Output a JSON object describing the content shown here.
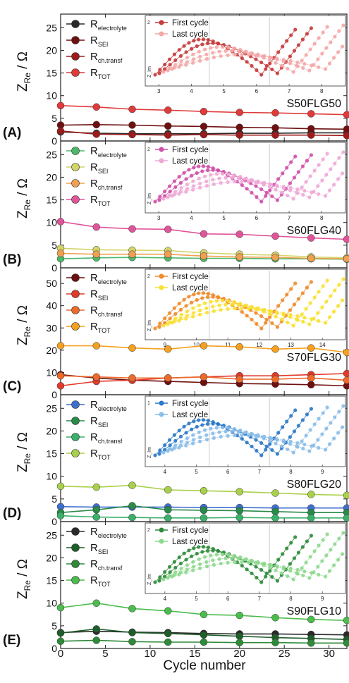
{
  "x_axis": {
    "label": "Cycle number",
    "range": [
      0,
      32
    ],
    "ticks": [
      0,
      5,
      10,
      15,
      20,
      25,
      30
    ]
  },
  "y_axis_label_main": "Z",
  "y_axis_label_sub": "Re",
  "y_axis_label_unit": "/ Ω",
  "inset_legend": [
    "First cycle",
    "Last cycle"
  ],
  "inset_ylabel": "Z_Im",
  "chart_data": [
    {
      "panel": "(A)",
      "sample": "S50FLG50",
      "type": "line",
      "ylim": [
        0,
        28
      ],
      "yticks": [
        0,
        5,
        10,
        15,
        20,
        25
      ],
      "x": [
        0,
        4,
        8,
        12,
        16,
        20,
        24,
        28,
        32
      ],
      "series": [
        {
          "name": "R_electrolyte",
          "color": "#2a2a2a",
          "values": [
            2.0,
            1.7,
            1.6,
            1.6,
            1.6,
            1.7,
            1.7,
            1.8,
            1.8
          ]
        },
        {
          "name": "R_SEI",
          "color": "#6e1010",
          "values": [
            3.5,
            3.6,
            3.5,
            3.3,
            3.2,
            3.0,
            2.9,
            2.7,
            2.6
          ]
        },
        {
          "name": "R_ch.transf",
          "color": "#9e1b1b",
          "values": [
            2.2,
            1.5,
            1.4,
            1.3,
            1.4,
            1.3,
            1.3,
            1.3,
            1.2
          ]
        },
        {
          "name": "R_TOT",
          "color": "#e03a3a",
          "values": [
            7.8,
            7.5,
            7.0,
            6.8,
            6.5,
            6.3,
            6.2,
            6.0,
            5.8
          ]
        }
      ],
      "inset": {
        "xticks": [
          3,
          4,
          5,
          6,
          7,
          8
        ],
        "xrange": [
          2.8,
          8.6
        ],
        "first_color": "#c63a3a",
        "last_color": "#f4a7a7",
        "ytop": "2"
      }
    },
    {
      "panel": "(B)",
      "sample": "S60FLG40",
      "type": "line",
      "ylim": [
        0,
        28
      ],
      "yticks": [
        0,
        5,
        10,
        15,
        20,
        25
      ],
      "x": [
        0,
        4,
        8,
        12,
        16,
        20,
        24,
        28,
        32
      ],
      "series": [
        {
          "name": "R_electrolyte",
          "color": "#4cb96a",
          "values": [
            2.0,
            2.2,
            2.3,
            2.2,
            2.1,
            2.1,
            2.0,
            2.0,
            1.9
          ]
        },
        {
          "name": "R_SEI",
          "color": "#d4d46a",
          "values": [
            4.3,
            4.0,
            3.9,
            3.8,
            3.3,
            3.0,
            2.8,
            2.4,
            2.2
          ]
        },
        {
          "name": "R_ch.transf",
          "color": "#f0a050",
          "values": [
            3.2,
            3.0,
            3.0,
            3.0,
            2.6,
            2.4,
            2.3,
            2.1,
            2.0
          ]
        },
        {
          "name": "R_TOT",
          "color": "#e0559a",
          "values": [
            10.2,
            9.0,
            8.6,
            8.5,
            7.5,
            7.4,
            7.0,
            6.6,
            6.3
          ]
        }
      ],
      "inset": {
        "xticks": [
          3,
          4,
          5,
          6,
          7,
          8
        ],
        "xrange": [
          2.8,
          8.6
        ],
        "first_color": "#d04fa8",
        "last_color": "#eea8d6",
        "ytop": "2"
      }
    },
    {
      "panel": "(C)",
      "sample": "S70FLG30",
      "type": "line",
      "ylim": [
        0,
        57
      ],
      "yticks": [
        0,
        10,
        20,
        30,
        40,
        50
      ],
      "x": [
        0,
        4,
        8,
        12,
        16,
        20,
        24,
        28,
        32
      ],
      "series": [
        {
          "name": "R_electrolyte",
          "color": "#6e1010",
          "values": [
            9.0,
            7.5,
            6.5,
            6.0,
            5.5,
            5.0,
            4.8,
            4.5,
            4.0
          ]
        },
        {
          "name": "R_SEI",
          "color": "#e03a2a",
          "values": [
            4.0,
            6.0,
            6.5,
            7.5,
            8.0,
            8.5,
            8.5,
            9.0,
            9.5
          ]
        },
        {
          "name": "R_ch.transf",
          "color": "#ee6a2a",
          "values": [
            8.5,
            8.0,
            7.5,
            7.5,
            8.0,
            7.0,
            7.0,
            7.5,
            6.5
          ]
        },
        {
          "name": "R_TOT",
          "color": "#f5a020",
          "values": [
            22.0,
            22.0,
            21.0,
            20.5,
            22.0,
            21.5,
            20.5,
            21.0,
            19.0
          ]
        }
      ],
      "inset": {
        "xticks": [
          9,
          10,
          11,
          12,
          13,
          14
        ],
        "xrange": [
          8.6,
          14.6
        ],
        "first_color": "#f08a2a",
        "last_color": "#f8e030",
        "ytop": "2"
      }
    },
    {
      "panel": "(D)",
      "sample": "S80FLG20",
      "type": "line",
      "ylim": [
        0,
        28
      ],
      "yticks": [
        0,
        5,
        10,
        15,
        20,
        25
      ],
      "x": [
        0,
        4,
        8,
        12,
        16,
        20,
        24,
        28,
        32
      ],
      "series": [
        {
          "name": "R_electrolyte",
          "color": "#3f6fce",
          "values": [
            3.3,
            3.2,
            3.2,
            3.2,
            3.1,
            3.1,
            3.0,
            3.0,
            3.0
          ]
        },
        {
          "name": "R_SEI",
          "color": "#2a8a4a",
          "values": [
            2.0,
            2.6,
            3.5,
            2.6,
            2.5,
            2.4,
            2.2,
            2.0,
            2.0
          ]
        },
        {
          "name": "R_ch.transf",
          "color": "#3ab06a",
          "values": [
            1.3,
            1.0,
            0.9,
            0.8,
            0.8,
            0.9,
            0.8,
            0.8,
            0.8
          ]
        },
        {
          "name": "R_TOT",
          "color": "#a8d04a",
          "values": [
            7.8,
            7.6,
            8.0,
            7.0,
            6.8,
            6.6,
            6.3,
            6.0,
            5.8
          ]
        }
      ],
      "inset": {
        "xticks": [
          4,
          5,
          6,
          7,
          8,
          9
        ],
        "xrange": [
          3.6,
          9.6
        ],
        "first_color": "#2a78c8",
        "last_color": "#8abde8",
        "ytop": "1"
      }
    },
    {
      "panel": "(E)",
      "sample": "S90FLG10",
      "type": "line",
      "ylim": [
        0,
        28
      ],
      "yticks": [
        0,
        5,
        10,
        15,
        20,
        25
      ],
      "x": [
        0,
        4,
        8,
        12,
        16,
        20,
        24,
        28,
        32
      ],
      "series": [
        {
          "name": "R_electrolyte",
          "color": "#2a2a2a",
          "values": [
            3.5,
            3.8,
            3.6,
            3.5,
            3.3,
            3.2,
            3.2,
            3.1,
            3.0
          ]
        },
        {
          "name": "R_SEI",
          "color": "#1e5e2a",
          "values": [
            3.4,
            4.3,
            3.5,
            3.3,
            3.0,
            2.7,
            2.4,
            2.2,
            2.0
          ]
        },
        {
          "name": "R_ch.transf",
          "color": "#2f8a3a",
          "values": [
            1.6,
            1.8,
            1.5,
            1.4,
            1.4,
            1.3,
            1.3,
            1.2,
            1.2
          ]
        },
        {
          "name": "R_TOT",
          "color": "#4cbc4c",
          "values": [
            9.0,
            10.0,
            8.8,
            8.3,
            7.5,
            7.3,
            6.8,
            6.4,
            6.2
          ]
        }
      ],
      "inset": {
        "xticks": [
          4,
          5,
          6,
          7,
          8,
          9
        ],
        "xrange": [
          3.6,
          9.6
        ],
        "first_color": "#2f8a3a",
        "last_color": "#8ed88e",
        "ytop": "2"
      }
    }
  ]
}
